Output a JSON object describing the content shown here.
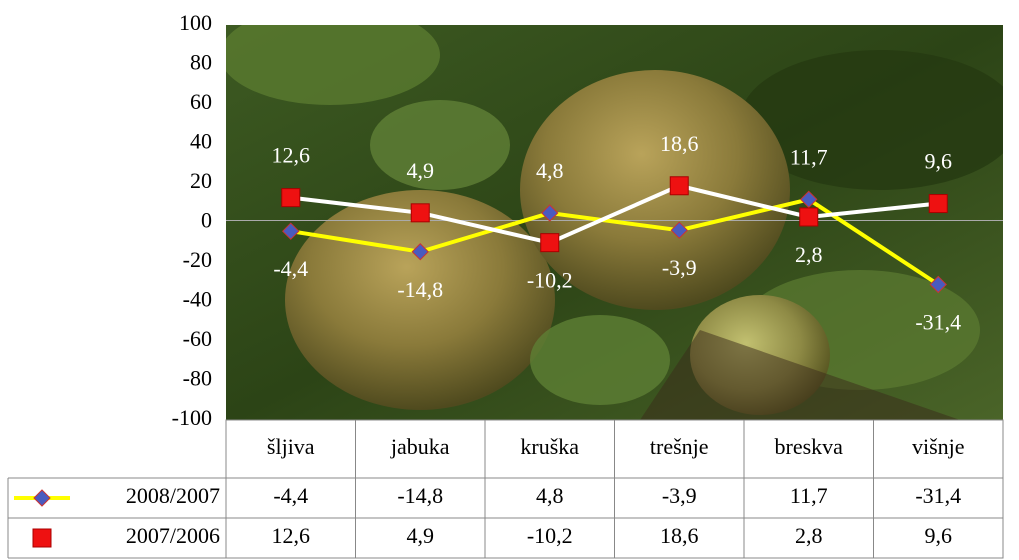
{
  "chart_data": {
    "type": "line",
    "categories": [
      "šljiva",
      "jabuka",
      "kruška",
      "trešnje",
      "breskva",
      "višnje"
    ],
    "series": [
      {
        "name": "2008/2007",
        "color": "#ffff00",
        "marker": "diamond",
        "marker_color": "#4a5bbf",
        "values": [
          -4.4,
          -14.8,
          4.8,
          -3.9,
          11.7,
          -31.4
        ],
        "value_labels": [
          "-4,4",
          "-14,8",
          "4,8",
          "-3,9",
          "11,7",
          "-31,4"
        ]
      },
      {
        "name": "2007/2006",
        "color": "#ffffff",
        "marker": "square",
        "marker_color": "#ee1111",
        "values": [
          12.6,
          4.9,
          -10.2,
          18.6,
          2.8,
          9.6
        ],
        "value_labels": [
          "12,6",
          "4,9",
          "-10,2",
          "18,6",
          "2,8",
          "9,6"
        ]
      }
    ],
    "ylim": [
      -100,
      100
    ],
    "yticks": [
      -100,
      -80,
      -60,
      -40,
      -20,
      0,
      20,
      40,
      60,
      80,
      100
    ],
    "data_table": true
  }
}
